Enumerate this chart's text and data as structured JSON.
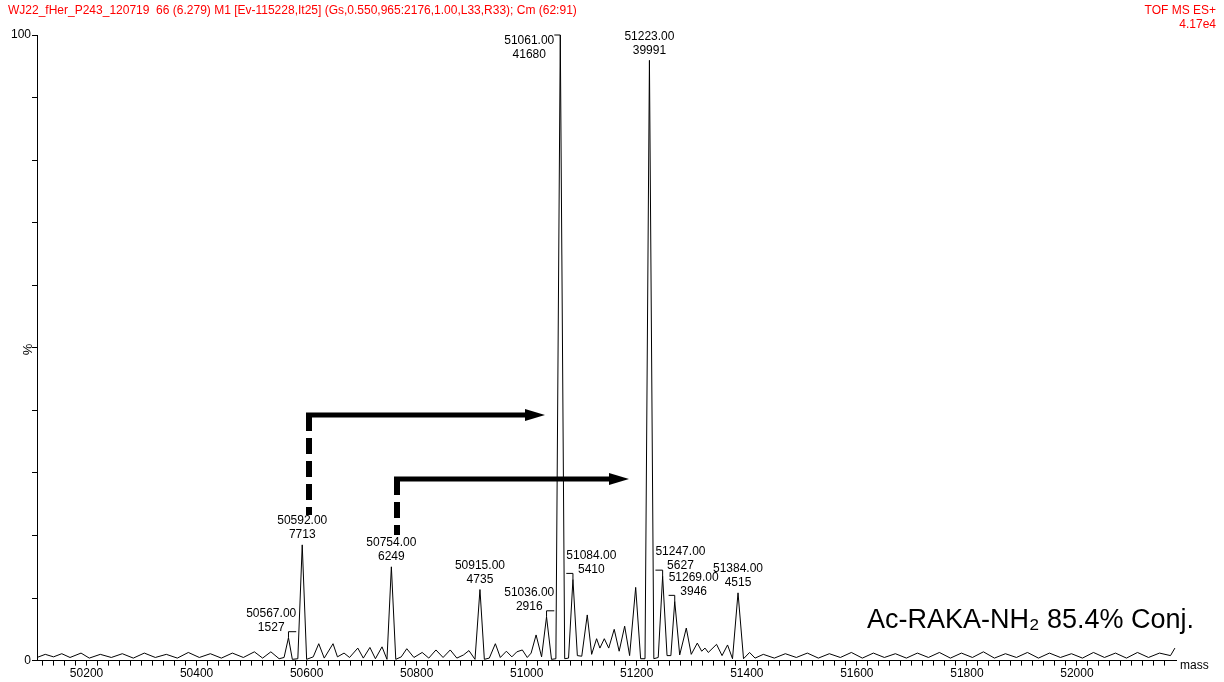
{
  "chart_data": {
    "type": "line",
    "title": "WJ22_fHer_P243_120719  66 (6.279) M1 [Ev-115228,It25] (Gs,0.550,965:2176,1.00,L33,R33); Cm (62:91)",
    "xlabel": "mass",
    "ylabel": "%",
    "marker": "none",
    "xlim": [
      50110,
      52180
    ],
    "ylim": [
      0,
      100
    ],
    "xticks": [
      {
        "value": 50120,
        "label": null
      },
      {
        "value": 50140,
        "label": null
      },
      {
        "value": 50160,
        "label": null
      },
      {
        "value": 50180,
        "label": null
      },
      50200,
      {
        "value": 50220,
        "label": null
      },
      {
        "value": 50240,
        "label": null
      },
      {
        "value": 50260,
        "label": null
      },
      {
        "value": 50280,
        "label": null
      },
      {
        "value": 50300,
        "label": null
      },
      {
        "value": 50320,
        "label": null
      },
      {
        "value": 50340,
        "label": null
      },
      {
        "value": 50360,
        "label": null
      },
      {
        "value": 50380,
        "label": null
      },
      50400,
      {
        "value": 50420,
        "label": null
      },
      {
        "value": 50440,
        "label": null
      },
      {
        "value": 50460,
        "label": null
      },
      {
        "value": 50480,
        "label": null
      },
      {
        "value": 50500,
        "label": null
      },
      {
        "value": 50520,
        "label": null
      },
      {
        "value": 50540,
        "label": null
      },
      {
        "value": 50560,
        "label": null
      },
      {
        "value": 50580,
        "label": null
      },
      50600,
      {
        "value": 50620,
        "label": null
      },
      {
        "value": 50640,
        "label": null
      },
      {
        "value": 50660,
        "label": null
      },
      {
        "value": 50680,
        "label": null
      },
      {
        "value": 50700,
        "label": null
      },
      {
        "value": 50720,
        "label": null
      },
      {
        "value": 50740,
        "label": null
      },
      {
        "value": 50760,
        "label": null
      },
      {
        "value": 50780,
        "label": null
      },
      50800,
      {
        "value": 50820,
        "label": null
      },
      {
        "value": 50840,
        "label": null
      },
      {
        "value": 50860,
        "label": null
      },
      {
        "value": 50880,
        "label": null
      },
      {
        "value": 50900,
        "label": null
      },
      {
        "value": 50920,
        "label": null
      },
      {
        "value": 50940,
        "label": null
      },
      {
        "value": 50960,
        "label": null
      },
      {
        "value": 50980,
        "label": null
      },
      51000,
      {
        "value": 51020,
        "label": null
      },
      {
        "value": 51040,
        "label": null
      },
      {
        "value": 51060,
        "label": null
      },
      {
        "value": 51080,
        "label": null
      },
      {
        "value": 51100,
        "label": null
      },
      {
        "value": 51120,
        "label": null
      },
      {
        "value": 51140,
        "label": null
      },
      {
        "value": 51160,
        "label": null
      },
      {
        "value": 51180,
        "label": null
      },
      51200,
      {
        "value": 51220,
        "label": null
      },
      {
        "value": 51240,
        "label": null
      },
      {
        "value": 51260,
        "label": null
      },
      {
        "value": 51280,
        "label": null
      },
      {
        "value": 51300,
        "label": null
      },
      {
        "value": 51320,
        "label": null
      },
      {
        "value": 51340,
        "label": null
      },
      {
        "value": 51360,
        "label": null
      },
      {
        "value": 51380,
        "label": null
      },
      51400,
      {
        "value": 51420,
        "label": null
      },
      {
        "value": 51440,
        "label": null
      },
      {
        "value": 51460,
        "label": null
      },
      {
        "value": 51480,
        "label": null
      },
      {
        "value": 51500,
        "label": null
      },
      {
        "value": 51520,
        "label": null
      },
      {
        "value": 51540,
        "label": null
      },
      {
        "value": 51560,
        "label": null
      },
      {
        "value": 51580,
        "label": null
      },
      51600,
      {
        "value": 51620,
        "label": null
      },
      {
        "value": 51640,
        "label": null
      },
      {
        "value": 51660,
        "label": null
      },
      {
        "value": 51680,
        "label": null
      },
      {
        "value": 51700,
        "label": null
      },
      {
        "value": 51720,
        "label": null
      },
      {
        "value": 51740,
        "label": null
      },
      {
        "value": 51760,
        "label": null
      },
      {
        "value": 51780,
        "label": null
      },
      51800,
      {
        "value": 51820,
        "label": null
      },
      {
        "value": 51840,
        "label": null
      },
      {
        "value": 51860,
        "label": null
      },
      {
        "value": 51880,
        "label": null
      },
      {
        "value": 51900,
        "label": null
      },
      {
        "value": 51920,
        "label": null
      },
      {
        "value": 51940,
        "label": null
      },
      {
        "value": 51960,
        "label": null
      },
      {
        "value": 51980,
        "label": null
      },
      52000,
      {
        "value": 52020,
        "label": null
      },
      {
        "value": 52040,
        "label": null
      },
      {
        "value": 52060,
        "label": null
      },
      {
        "value": 52080,
        "label": null
      },
      {
        "value": 52100,
        "label": null
      },
      {
        "value": 52120,
        "label": null
      },
      {
        "value": 52140,
        "label": null
      },
      {
        "value": 52160,
        "label": null
      }
    ],
    "yticks": [
      0,
      {
        "value": 10,
        "label": null
      },
      {
        "value": 20,
        "label": null
      },
      {
        "value": 30,
        "label": null
      },
      {
        "value": 40,
        "label": null
      },
      {
        "value": 50,
        "label": null
      },
      {
        "value": 60,
        "label": null
      },
      {
        "value": 70,
        "label": null
      },
      {
        "value": 80,
        "label": null
      },
      {
        "value": 90,
        "label": null
      },
      100
    ],
    "series": [
      {
        "color": "#000000",
        "x": [
          50110,
          50125,
          50140,
          50155,
          50170,
          50190,
          50205,
          50225,
          50245,
          50265,
          50285,
          50305,
          50325,
          50345,
          50365,
          50385,
          50405,
          50425,
          50445,
          50465,
          50485,
          50505,
          50520,
          50535,
          50550,
          50559,
          50567,
          50574,
          50584,
          50592,
          50600,
          50612,
          50622,
          50632,
          50648,
          50656,
          50668,
          50678,
          50693,
          50703,
          50715,
          50725,
          50737,
          50746,
          50754,
          50762,
          50772,
          50782,
          50795,
          50810,
          50822,
          50835,
          50848,
          50861,
          50873,
          50885,
          50895,
          50906,
          50915,
          50923,
          50932,
          50943,
          50952,
          50963,
          50973,
          50982,
          50992,
          51001,
          51008,
          51017,
          51027,
          51036,
          51045,
          51053,
          51061,
          51069,
          51076,
          51084,
          51092,
          51100,
          51110,
          51118,
          51127,
          51133,
          51141,
          51149,
          51159,
          51168,
          51178,
          51187,
          51198,
          51207,
          51215,
          51223,
          51231,
          51239,
          51247,
          51255,
          51262,
          51269,
          51278,
          51290,
          51299,
          51310,
          51318,
          51324,
          51330,
          51345,
          51355,
          51365,
          51374,
          51384,
          51394,
          51405,
          51415,
          51430,
          51450,
          51470,
          51490,
          51510,
          51530,
          51550,
          51570,
          51590,
          51610,
          51630,
          51650,
          51670,
          51690,
          51710,
          51730,
          51750,
          51770,
          51790,
          51810,
          51830,
          51850,
          51870,
          51890,
          51910,
          51930,
          51950,
          51970,
          51990,
          52010,
          52030,
          52050,
          52070,
          52090,
          52110,
          52130,
          52150,
          52170,
          52178
        ],
        "values": [
          0.5,
          1.0,
          0.6,
          1.1,
          0.5,
          1.2,
          0.4,
          1.0,
          0.5,
          1.1,
          0.4,
          1.2,
          0.5,
          1.0,
          0.4,
          1.3,
          0.5,
          1.1,
          0.4,
          1.2,
          0.5,
          1.4,
          0.4,
          1.4,
          0.3,
          0.5,
          3.66,
          0.2,
          0.3,
          18.5,
          0.2,
          0.6,
          2.7,
          0.4,
          2.7,
          0.6,
          1.2,
          0.5,
          2.0,
          0.4,
          2.1,
          0.3,
          2.2,
          0.2,
          14.99,
          0.2,
          0.6,
          1.9,
          0.5,
          1.3,
          0.4,
          1.7,
          0.5,
          1.7,
          0.4,
          0.9,
          1.6,
          0.2,
          11.36,
          0.2,
          0.4,
          2.7,
          0.5,
          1.5,
          0.6,
          1.4,
          1.7,
          0.5,
          1.2,
          4.1,
          0.6,
          7.0,
          0.2,
          0.3,
          100,
          0.3,
          0.4,
          12.98,
          0.8,
          0.7,
          7.3,
          1.0,
          3.5,
          2.0,
          3.5,
          2.0,
          5.0,
          1.5,
          5.5,
          0.8,
          11.7,
          0.3,
          0.3,
          95.95,
          0.3,
          0.5,
          13.5,
          0.8,
          0.8,
          9.47,
          0.9,
          5.2,
          1.0,
          2.8,
          1.5,
          2.0,
          1.3,
          2.6,
          0.8,
          2.5,
          0.3,
          10.83,
          0.3,
          1.3,
          0.4,
          1.0,
          0.4,
          1.1,
          0.5,
          1.2,
          0.4,
          1.1,
          0.5,
          1.3,
          0.4,
          1.2,
          0.5,
          1.1,
          0.4,
          1.2,
          0.5,
          1.3,
          0.4,
          1.2,
          0.5,
          1.4,
          0.4,
          1.1,
          0.5,
          1.3,
          0.4,
          1.2,
          0.5,
          1.1,
          0.4,
          1.3,
          0.5,
          1.2,
          0.4,
          1.3,
          0.5,
          1.2,
          0.8,
          2.0
        ]
      }
    ],
    "annotations": [
      "TOF MS ES+",
      "4.17e4",
      "Ac-RAKA-NH₂ 85.4% Conj.",
      {
        "text": "50567.00\n1527",
        "x": 50567,
        "y": 3.66
      },
      {
        "text": "50592.00\n7713",
        "x": 50592,
        "y": 18.5
      },
      {
        "text": "50754.00\n6249",
        "x": 50754,
        "y": 14.99
      },
      {
        "text": "50915.00\n4735",
        "x": 50915,
        "y": 11.36
      },
      {
        "text": "51036.00\n2916",
        "x": 51036,
        "y": 7.0
      },
      {
        "text": "51061.00\n41680",
        "x": 51061,
        "y": 100
      },
      {
        "text": "51084.00\n5410",
        "x": 51084,
        "y": 12.98
      },
      {
        "text": "51223.00\n39991",
        "x": 51223,
        "y": 95.95
      },
      {
        "text": "51247.00\n5627",
        "x": 51247,
        "y": 13.5
      },
      {
        "text": "51269.00\n3946",
        "x": 51269,
        "y": 9.47
      },
      {
        "text": "51384.00\n4515",
        "x": 51384,
        "y": 10.83
      }
    ]
  }
}
